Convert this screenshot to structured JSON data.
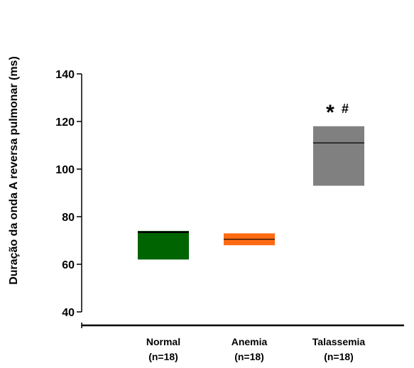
{
  "chart_data": {
    "type": "box",
    "ylabel": "Duração da onda A reversa pulmonar (ms)",
    "ylim": [
      40,
      140
    ],
    "yticks": [
      40,
      60,
      80,
      100,
      120,
      140
    ],
    "categories": [
      {
        "label": "Normal",
        "n": "(n=18)",
        "low": 62,
        "high": 74,
        "median": 73.5,
        "color": "#006400"
      },
      {
        "label": "Anemia",
        "n": "(n=18)",
        "low": 68,
        "high": 73,
        "median": 70.5,
        "color": "#ff6a13"
      },
      {
        "label": "Talassemia",
        "n": "(n=18)",
        "low": 93,
        "high": 118,
        "median": 111,
        "color": "#808080"
      }
    ],
    "annotations": [
      {
        "category": "Talassemia",
        "star": "*",
        "hash": "#"
      }
    ]
  }
}
